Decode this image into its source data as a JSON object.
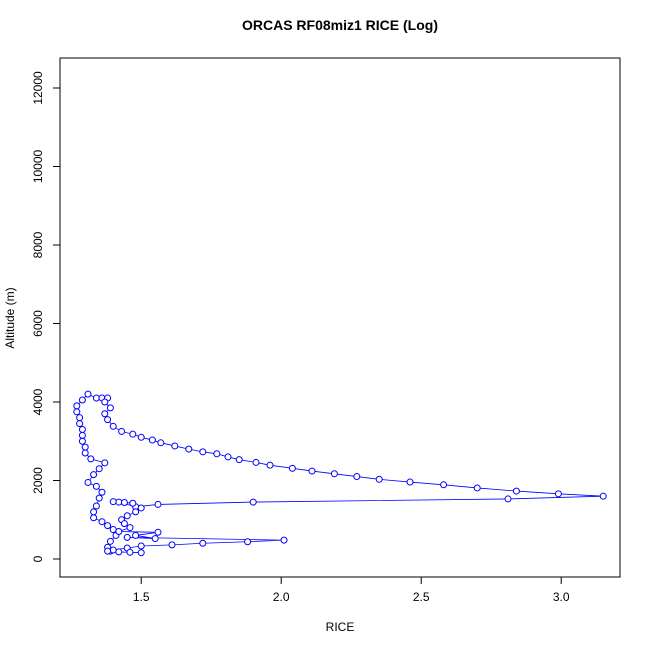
{
  "chart_data": {
    "type": "line",
    "title": "ORCAS RF08miz1 RICE (Log)",
    "x_label": "RICE",
    "y_label": "Altitude (m)",
    "xlim": [
      1.21,
      3.21
    ],
    "ylim": [
      -459,
      12764
    ],
    "xticks": [
      1.5,
      {
        "value": 2,
        "label": "2.0"
      },
      2.5,
      {
        "value": 3,
        "label": "3.0"
      }
    ],
    "yticks": [
      0,
      2000,
      4000,
      6000,
      8000,
      10000,
      12000
    ],
    "series": [
      {
        "name": "RICE",
        "color": "#0000ff",
        "x": [
          1.39,
          1.38,
          1.39,
          1.41,
          1.4,
          1.38,
          1.36,
          1.33,
          1.33,
          1.34,
          1.35,
          1.36,
          1.34,
          1.31,
          1.33,
          1.35,
          1.37,
          1.32,
          1.3,
          1.3,
          1.29,
          1.29,
          1.29,
          1.28,
          1.28,
          1.27,
          1.27,
          1.29,
          1.31,
          1.34,
          1.36,
          1.38,
          1.37,
          1.39,
          1.37,
          1.38,
          1.4,
          1.43,
          1.47,
          1.5,
          1.54,
          1.57,
          1.62,
          1.67,
          1.72,
          1.77,
          1.81,
          1.85,
          1.91,
          1.96,
          2.04,
          2.11,
          2.19,
          2.27,
          2.35,
          2.46,
          2.58,
          2.7,
          2.84,
          2.99,
          3.15,
          2.81,
          1.9,
          1.56,
          1.48,
          1.42,
          1.4,
          1.44,
          1.47,
          1.5,
          1.48,
          1.45,
          1.43,
          1.44,
          1.46,
          1.42,
          1.56,
          1.48,
          1.55,
          1.45,
          2.01,
          1.88,
          1.72,
          1.61,
          1.5,
          1.45,
          1.4,
          1.38,
          1.42,
          1.46,
          1.5
        ],
        "values": [
          200,
          300,
          450,
          600,
          750,
          850,
          950,
          1050,
          1200,
          1350,
          1550,
          1700,
          1850,
          1950,
          2150,
          2300,
          2450,
          2550,
          2700,
          2850,
          3000,
          3150,
          3300,
          3450,
          3600,
          3750,
          3900,
          4050,
          4200,
          4100,
          4100,
          4100,
          4000,
          3850,
          3700,
          3550,
          3380,
          3250,
          3180,
          3100,
          3030,
          2960,
          2880,
          2800,
          2730,
          2680,
          2600,
          2530,
          2460,
          2390,
          2310,
          2240,
          2170,
          2100,
          2030,
          1960,
          1890,
          1810,
          1730,
          1660,
          1600,
          1530,
          1450,
          1390,
          1330,
          1450,
          1460,
          1440,
          1420,
          1300,
          1200,
          1100,
          1000,
          900,
          800,
          700,
          680,
          600,
          520,
          550,
          480,
          440,
          400,
          360,
          330,
          280,
          230,
          200,
          180,
          170,
          160
        ]
      }
    ]
  }
}
